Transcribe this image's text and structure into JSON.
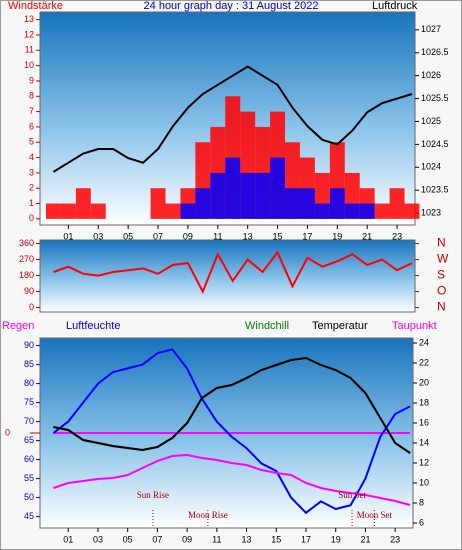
{
  "chart_data": [
    {
      "type": "line",
      "title": "24 hour graph day : 31 August 2022",
      "x": [
        0,
        1,
        2,
        3,
        4,
        5,
        6,
        7,
        8,
        9,
        10,
        11,
        12,
        13,
        14,
        15,
        16,
        17,
        18,
        19,
        20,
        21,
        22,
        23,
        24
      ],
      "xlim": [
        -0.9,
        24.2
      ],
      "xticks": [
        {
          "value": 1,
          "label": "01"
        },
        {
          "value": 3,
          "label": "03"
        },
        {
          "value": 5,
          "label": "05"
        },
        {
          "value": 7,
          "label": "07"
        },
        {
          "value": 9,
          "label": "09"
        },
        {
          "value": 11,
          "label": "11"
        },
        {
          "value": 13,
          "label": "13"
        },
        {
          "value": 15,
          "label": "15"
        },
        {
          "value": 17,
          "label": "17"
        },
        {
          "value": 19,
          "label": "19"
        },
        {
          "value": 21,
          "label": "21"
        },
        {
          "value": 23,
          "label": "23"
        }
      ],
      "ylim": [
        -0.4,
        13.5
      ],
      "yticks": [
        0,
        1,
        2,
        3,
        4,
        5,
        6,
        7,
        8,
        9,
        10,
        11,
        12,
        13
      ],
      "ycolor": "#cc0000",
      "y2lim": [
        1022.74,
        1027.39
      ],
      "y2ticks": [
        1023,
        1023.5,
        1024,
        1024.5,
        1025,
        1025.5,
        1026,
        1026.5,
        1027
      ],
      "y2color": "#000000",
      "series": [
        {
          "name": "Windstärke",
          "color": "#ff0000",
          "kind": "bar",
          "values": [
            1,
            1,
            2,
            1,
            0,
            0,
            0,
            2,
            1,
            2,
            5,
            6,
            8,
            7,
            6,
            7,
            5,
            4,
            3,
            5,
            3,
            2,
            1,
            2,
            1
          ]
        },
        {
          "color": "#0000ff",
          "kind": "bar",
          "values": [
            0,
            0,
            0,
            0,
            0,
            0,
            0,
            0,
            0,
            1,
            2,
            3,
            4,
            3,
            3,
            4,
            2,
            2,
            1,
            2,
            1,
            1,
            0,
            0,
            0
          ]
        },
        {
          "name": "Luftdruck",
          "color": "#000000",
          "axis": "y2",
          "values": [
            1023.9,
            1024.1,
            1024.3,
            1024.4,
            1024.4,
            1024.2,
            1024.1,
            1024.4,
            1024.9,
            1025.3,
            1025.6,
            1025.8,
            1026.0,
            1026.2,
            1026.0,
            1025.8,
            1025.3,
            1024.9,
            1024.6,
            1024.5,
            1024.8,
            1025.2,
            1025.4,
            1025.5,
            1025.6
          ]
        }
      ]
    },
    {
      "type": "line",
      "x": [
        0,
        1,
        2,
        3,
        4,
        5,
        6,
        7,
        8,
        9,
        10,
        11,
        12,
        13,
        14,
        15,
        16,
        17,
        18,
        19,
        20,
        21,
        22,
        23,
        24
      ],
      "xlim": [
        -0.9,
        24.2
      ],
      "ylim": [
        -25,
        380
      ],
      "yticks": [
        0,
        90,
        180,
        270,
        360
      ],
      "ycolor": "#cc0000",
      "y2lim": [
        -25,
        380
      ],
      "y2ticks": [
        {
          "value": 360,
          "label": "N"
        },
        {
          "value": 270,
          "label": "W"
        },
        {
          "value": 180,
          "label": "S"
        },
        {
          "value": 90,
          "label": "O"
        },
        {
          "value": 0,
          "label": "N"
        }
      ],
      "y2color": "#cc0000",
      "series": [
        {
          "color": "#ff0000",
          "values": [
            200,
            230,
            190,
            180,
            200,
            210,
            220,
            190,
            240,
            250,
            90,
            300,
            150,
            270,
            200,
            310,
            120,
            280,
            230,
            260,
            300,
            240,
            270,
            210,
            250
          ]
        }
      ]
    },
    {
      "type": "line",
      "x": [
        0,
        1,
        2,
        3,
        4,
        5,
        6,
        7,
        8,
        9,
        10,
        11,
        12,
        13,
        14,
        15,
        16,
        17,
        18,
        19,
        20,
        21,
        22,
        23,
        24
      ],
      "xlim": [
        -0.9,
        24.2
      ],
      "xticks": [
        {
          "value": 1,
          "label": "01"
        },
        {
          "value": 3,
          "label": "03"
        },
        {
          "value": 5,
          "label": "05"
        },
        {
          "value": 7,
          "label": "07"
        },
        {
          "value": 9,
          "label": "09"
        },
        {
          "value": 11,
          "label": "11"
        },
        {
          "value": 13,
          "label": "13"
        },
        {
          "value": 15,
          "label": "15"
        },
        {
          "value": 17,
          "label": "17"
        },
        {
          "value": 19,
          "label": "19"
        },
        {
          "value": 21,
          "label": "21"
        },
        {
          "value": 23,
          "label": "23"
        }
      ],
      "ylim": [
        42,
        92
      ],
      "yticks": [
        45,
        50,
        55,
        60,
        65,
        70,
        75,
        80,
        85,
        90
      ],
      "ycolor": "#0000cc",
      "y2lim": [
        5.5,
        24.5
      ],
      "y2ticks": [
        6,
        8,
        10,
        12,
        14,
        16,
        18,
        20,
        22,
        24
      ],
      "y2color": "#000000",
      "y3lim": [
        -1,
        1
      ],
      "y3ticks": [
        0
      ],
      "y3color": "#cc0000",
      "series": [
        {
          "name": "Regen",
          "color": "#ff00ff",
          "axis": "y3",
          "values": [
            0,
            0,
            0,
            0,
            0,
            0,
            0,
            0,
            0,
            0,
            0,
            0,
            0,
            0,
            0,
            0,
            0,
            0,
            0,
            0,
            0,
            0,
            0,
            0,
            0
          ]
        },
        {
          "name": "Luftfeuchte",
          "color": "#0000ff",
          "values": [
            67,
            70,
            75,
            80,
            83,
            84,
            85,
            88,
            89,
            84,
            76,
            70,
            66,
            63,
            59,
            57,
            50,
            46,
            49,
            47,
            48,
            55,
            66,
            72,
            74
          ]
        },
        {
          "name": "Windchill",
          "color": "#008000",
          "axis": "y2",
          "values": [
            15.6,
            15.3,
            14.3,
            14.0,
            13.7,
            13.5,
            13.3,
            13.6,
            14.5,
            16,
            18.5,
            19.5,
            19.8,
            20.5,
            21.3,
            21.8,
            22.3,
            22.5,
            21.8,
            21.3,
            20.5,
            19,
            16.5,
            14,
            13
          ]
        },
        {
          "name": "Temperatur",
          "color": "#000000",
          "axis": "y2",
          "values": [
            15.6,
            15.3,
            14.3,
            14.0,
            13.7,
            13.5,
            13.3,
            13.6,
            14.5,
            16,
            18.5,
            19.5,
            19.8,
            20.5,
            21.3,
            21.8,
            22.3,
            22.5,
            21.8,
            21.3,
            20.5,
            19,
            16.5,
            14,
            13
          ]
        },
        {
          "name": "Taupunkt",
          "color": "#ff00ff",
          "axis": "y2",
          "values": [
            9.5,
            10,
            10.2,
            10.4,
            10.5,
            10.8,
            11.5,
            12.2,
            12.7,
            12.8,
            12.5,
            12.3,
            12,
            11.8,
            11.3,
            11,
            10.8,
            10,
            9.5,
            9.2,
            9,
            8.8,
            8.5,
            8.2,
            7.8
          ]
        }
      ],
      "events": [
        {
          "label": "Sun Rise",
          "x": 6.7
        },
        {
          "label": "Moon Rise",
          "x": 10.4
        },
        {
          "label": "Sun Set",
          "x": 20.1
        },
        {
          "label": "Moon Set",
          "x": 21.6
        }
      ]
    }
  ]
}
